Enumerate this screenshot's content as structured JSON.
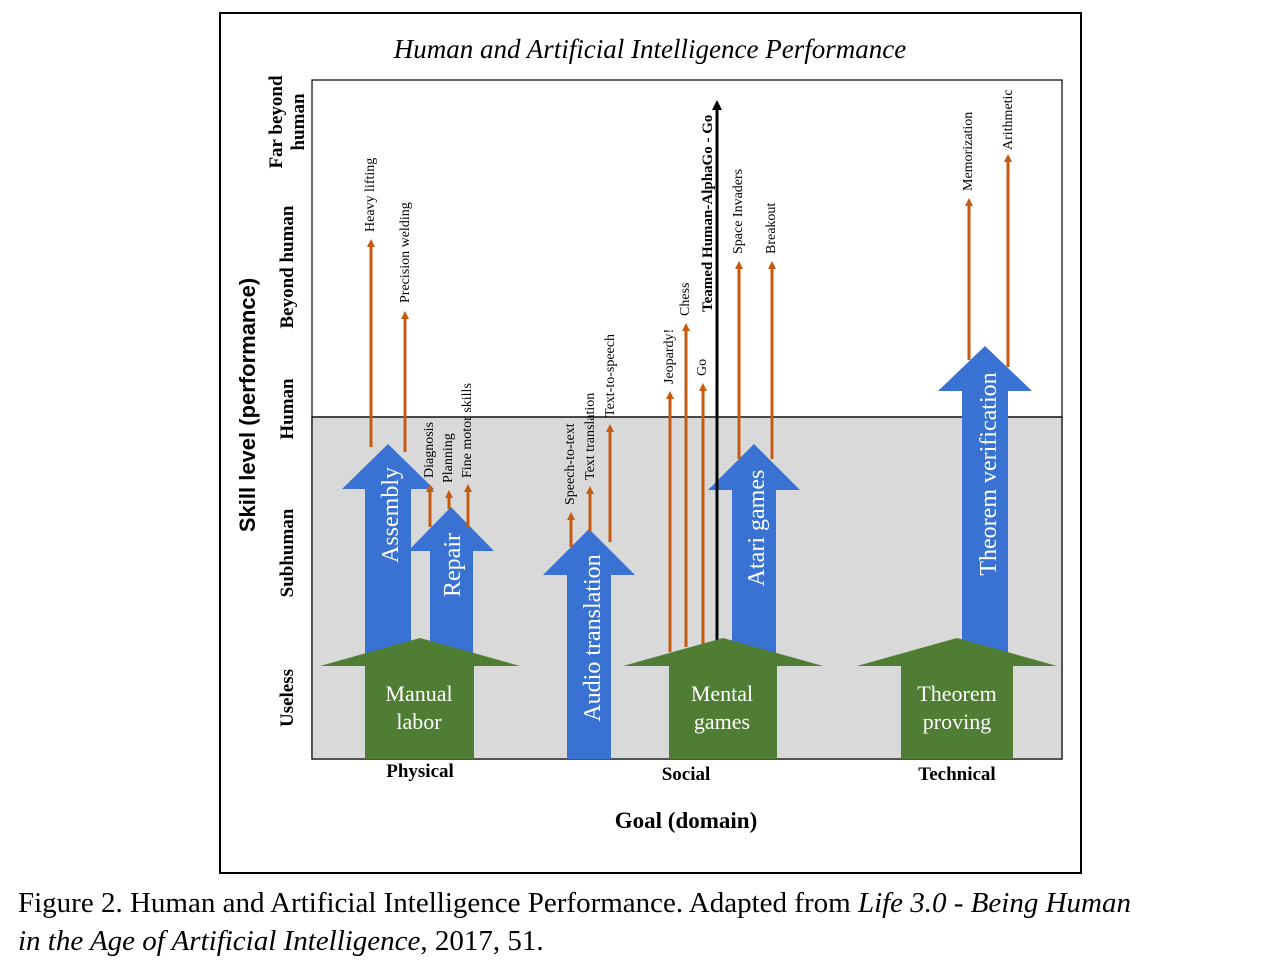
{
  "title": "Human and Artificial Intelligence Performance",
  "y_axis": {
    "title": "Skill level (performance)",
    "levels": [
      "Useless",
      "Subhuman",
      "Human",
      "Beyond human",
      "Far beyond",
      "human"
    ]
  },
  "x_axis": {
    "title": "Goal (domain)",
    "domains": [
      "Physical",
      "Social",
      "Technical"
    ]
  },
  "domain_arrows": [
    {
      "line1": "Manual",
      "line2": "labor"
    },
    {
      "line1": "Mental",
      "line2": "games"
    },
    {
      "line1": "Theorem",
      "line2": "proving"
    }
  ],
  "task_arrows": [
    "Assembly",
    "Repair",
    "Audio translation",
    "Atari games",
    "Theorem verification"
  ],
  "skills": [
    "Heavy lifting",
    "Precision welding",
    "Diagnosis",
    "Planning",
    "Fine motor skills",
    "Speech-to-text",
    "Text translation",
    "Text-to-speech",
    "Jeopardy!",
    "Chess",
    "Go",
    "Teamed Human-AlphaGo - Go",
    "Space Invaders",
    "Breakout",
    "Memorization",
    "Arithmetic"
  ],
  "colors": {
    "blue": "#3a72d4",
    "green": "#4e7d33",
    "orange": "#c55a11",
    "shade": "#d9d9d9"
  },
  "caption": {
    "prefix": "Figure 2. Human and Artificial Intelligence Performance. Adapted from ",
    "book_title_1": "Life 3.0 - Being Human",
    "book_title_2": "in the Age of Artificial Intelligence",
    "suffix": ", 2017, 51."
  }
}
